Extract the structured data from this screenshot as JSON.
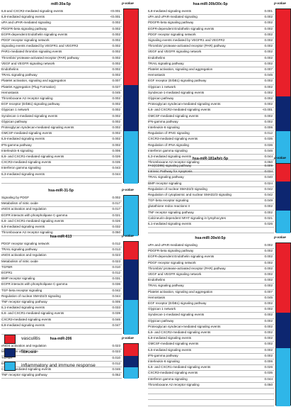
{
  "colors": {
    "vasculitis": "#e8202a",
    "fibrosis": "#0d2670",
    "inflammatory": "#2fb6e8",
    "row_line": "#b7b7b7"
  },
  "legend": [
    {
      "key": "vasculitis",
      "label": "vasculitis"
    },
    {
      "key": "fibrosis",
      "label": "fibrosis"
    },
    {
      "key": "inflammatory",
      "label": "inflammatory and immune response"
    }
  ],
  "panels": [
    {
      "title": "miR-30a-5p",
      "pvalue_header": "p-value",
      "bars": [
        {
          "start": 0,
          "end": 13,
          "key": "vasculitis"
        },
        {
          "start": 13,
          "end": 21,
          "key": "fibrosis"
        },
        {
          "start": 21,
          "end": 30,
          "key": "inflammatory"
        }
      ],
      "rows": [
        {
          "label": "IL6-and CXCR2-mediated signaling events",
          "value": "<0.001"
        },
        {
          "label": "IL8-mediated signaling events",
          "value": "<0.001"
        },
        {
          "label": "uPA and uPAR-mediated signaling",
          "value": "0.002"
        },
        {
          "label": "PDGFR-beta signaling pathway",
          "value": "0.002"
        },
        {
          "label": "EGFR-dependent Endothelin signaling events",
          "value": "0.002"
        },
        {
          "label": "PDGF receptor signaling network",
          "value": "0.002"
        },
        {
          "label": "Signaling events mediated by VEGFR1 and VEGFR2",
          "value": "0.002"
        },
        {
          "label": "PAR1-mediated thrombin signaling events",
          "value": "0.002"
        },
        {
          "label": "Thrombin/ protease-activated receptor (PAR) pathway",
          "value": "0.002"
        },
        {
          "label": "VEGF and VEGFR signaling network",
          "value": "0.002"
        },
        {
          "label": "Endothelins",
          "value": "0.002"
        },
        {
          "label": "TRAIL signaling pathway",
          "value": "0.002"
        },
        {
          "label": "Platelet activation, signaling and aggregation",
          "value": "0.007"
        },
        {
          "label": "Platelet Aggregation (Plug Formation)",
          "value": "0.027"
        },
        {
          "label": "Hemostasis",
          "value": "0.045"
        },
        {
          "label": "Thromboxane A2 receptor signaling",
          "value": "0.002"
        },
        {
          "label": "EGF receptor (ErbB1) signaling pathway",
          "value": "0.002"
        },
        {
          "label": "Glypican 1 network",
          "value": "0.002"
        },
        {
          "label": "Syndecan-1-mediated signaling events",
          "value": "0.002"
        },
        {
          "label": "Glypican pathway",
          "value": "0.002"
        },
        {
          "label": "Proteoglycan syndecan-mediated signaling events",
          "value": "0.002"
        },
        {
          "label": "GMCSF-mediated signaling events",
          "value": "0.002"
        },
        {
          "label": "IL5-mediated signaling events",
          "value": "0.002"
        },
        {
          "label": "IFN-gamma pathway",
          "value": "0.002"
        },
        {
          "label": "Interleukin-6 signaling",
          "value": "0.006"
        },
        {
          "label": "IL6- and CXCR1-mediated signaling events",
          "value": "0.026"
        },
        {
          "label": "CXCR3-mediated signaling events",
          "value": "0.035"
        },
        {
          "label": "Interferon gamma signaling",
          "value": "0.043"
        },
        {
          "label": "IL3-mediated signaling events",
          "value": "0.044"
        },
        {
          "label": "",
          "value": ""
        }
      ]
    },
    {
      "title": "hsa-miR-31-5p",
      "pvalue_header": "p-value",
      "bars": [
        {
          "start": 0,
          "end": 7,
          "key": "inflammatory"
        }
      ],
      "rows": [
        {
          "label": "Signaling by PDGF",
          "value": "0.002"
        },
        {
          "label": "Metabolism of nitric oxide",
          "value": "0.017"
        },
        {
          "label": "eNOS activation and regulation",
          "value": "0.017"
        },
        {
          "label": "EGFR interacts with phospholipase C-gamma",
          "value": "0.021"
        },
        {
          "label": "IL6- and CXCR1-mediated signaling events",
          "value": "0.026"
        },
        {
          "label": "IL8-mediated signaling events",
          "value": "0.032"
        },
        {
          "label": "Thromboxane A2 receptor signaling",
          "value": "0.050"
        }
      ]
    },
    {
      "title": "hsa-miR-613",
      "pvalue_header": "p-value",
      "bars": [
        {
          "start": 0,
          "end": 3,
          "key": "vasculitis"
        },
        {
          "start": 3,
          "end": 10,
          "key": "fibrosis"
        },
        {
          "start": 10,
          "end": 16,
          "key": "inflammatory"
        }
      ],
      "rows": [
        {
          "label": "PDGF receptor signaling network",
          "value": "0.012"
        },
        {
          "label": "TRAIL signaling pathway",
          "value": "0.013"
        },
        {
          "label": "eNOS activation and regulation",
          "value": "0.023"
        },
        {
          "label": "Metabolism of nitric oxide",
          "value": "0.023"
        },
        {
          "label": "TGFBR",
          "value": "0.010"
        },
        {
          "label": "EGFR1",
          "value": "0.012"
        },
        {
          "label": "BMP receptor signaling",
          "value": "0.031"
        },
        {
          "label": "EGFR interacts with phospholipase C-gamma",
          "value": "0.036"
        },
        {
          "label": "TGF-beta receptor signaling",
          "value": "0.042"
        },
        {
          "label": "Regulation of nuclear SMAD2/3 signaling",
          "value": "0.044"
        },
        {
          "label": "TNF receptor signaling pathway",
          "value": "0.005"
        },
        {
          "label": "IL1-mediated signaling events",
          "value": "0.033"
        },
        {
          "label": "IL6- and CXCR1-mediated signaling events",
          "value": "0.039"
        },
        {
          "label": "CXCR3-mediated signaling events",
          "value": "0.046"
        },
        {
          "label": "IL8-mediated signaling events",
          "value": "0.047"
        },
        {
          "label": "",
          "value": ""
        }
      ]
    },
    {
      "title": "hsa-miR-206",
      "pvalue_header": "p-value",
      "bars": [
        {
          "start": 0,
          "end": 2,
          "key": "vasculitis"
        },
        {
          "start": 2,
          "end": 4,
          "key": "fibrosis"
        },
        {
          "start": 4,
          "end": 6,
          "key": "inflammatory"
        }
      ],
      "rows": [
        {
          "label": "eNOS activation and regulation",
          "value": "0.023"
        },
        {
          "label": "Metabolism of nitric oxide",
          "value": "0.023"
        },
        {
          "label": "TGFBR",
          "value": "0.010"
        },
        {
          "label": "EGFR1",
          "value": "0.012"
        },
        {
          "label": "CXCR3-mediated signaling events",
          "value": "0.046"
        },
        {
          "label": "TNF receptor signaling pathway",
          "value": "0.052"
        }
      ]
    },
    {
      "title": "hsa-miR-30b/30c-5p",
      "pvalue_header": "p-value",
      "bars": [
        {
          "start": 0,
          "end": 15,
          "key": "vasculitis"
        },
        {
          "start": 15,
          "end": 21,
          "key": "fibrosis"
        },
        {
          "start": 21,
          "end": 32,
          "key": "inflammatory"
        }
      ],
      "rows": [
        {
          "label": "IL8-mediated signaling events",
          "value": "0.001"
        },
        {
          "label": "uPA and uPAR-mediated signaling",
          "value": "0.002"
        },
        {
          "label": "PDGFR-beta signaling pathway",
          "value": "0.002"
        },
        {
          "label": "EGFR-dependent Endothelin signaling events",
          "value": "0.002"
        },
        {
          "label": "PDGF receptor signaling network",
          "value": "0.002"
        },
        {
          "label": "Signaling events mediated by VEGFR1 and VEGFR2",
          "value": "0.002"
        },
        {
          "label": "Thrombin/ protease-activated receptor (PAR) pathway",
          "value": "0.002"
        },
        {
          "label": "VEGF and VEGFR signaling network",
          "value": "0.002"
        },
        {
          "label": "Endothelins",
          "value": "0.002"
        },
        {
          "label": "TRAIL signaling pathway",
          "value": "0.002"
        },
        {
          "label": "Platelet activation, signaling and aggregation",
          "value": "0.007"
        },
        {
          "label": "Hemostasis",
          "value": "0.045"
        },
        {
          "label": "EGF receptor (ErbB1) signaling pathway",
          "value": "0.002"
        },
        {
          "label": "Glypican 1 network",
          "value": "0.002"
        },
        {
          "label": "Syndecan-1-mediated signaling events",
          "value": "0.002"
        },
        {
          "label": "Glypican pathway",
          "value": "0.002"
        },
        {
          "label": "Proteoglycan syndecan-mediated signaling events",
          "value": "0.002"
        },
        {
          "label": "IL6- and CXCR2-mediated signaling events",
          "value": "<0.001"
        },
        {
          "label": "GMCSF-mediated signaling events",
          "value": "0.002"
        },
        {
          "label": "IFN-gamma pathway",
          "value": "0.002"
        },
        {
          "label": "Interleukin-6 signaling",
          "value": "0.006"
        },
        {
          "label": "Regulation of IFNG signaling",
          "value": "0.012"
        },
        {
          "label": "CXCR3-mediated signaling events",
          "value": "0.035"
        },
        {
          "label": "Regulation of IFNA signaling",
          "value": "0.036"
        },
        {
          "label": "Interferon gamma signaling",
          "value": "0.046"
        },
        {
          "label": "IL3-mediated signaling events",
          "value": "0.044"
        },
        {
          "label": "Thromboxane A2 receptor signaling",
          "value": "0.050"
        },
        {
          "label": "",
          "value": ""
        }
      ]
    },
    {
      "title": "hsa-miR-181a/b/c-5p",
      "pvalue_header": "p-value",
      "bars": [
        {
          "start": 0,
          "end": 3,
          "key": "vasculitis"
        },
        {
          "start": 3,
          "end": 8,
          "key": "fibrosis"
        },
        {
          "start": 8,
          "end": 12,
          "key": "inflammatory"
        }
      ],
      "rows": [
        {
          "label": "FAS(CD95) signaling pathway",
          "value": "0.009"
        },
        {
          "label": "Intrinsic Pathway for Apoptosis",
          "value": "0.034"
        },
        {
          "label": "TRAIL signaling pathway",
          "value": "0.040"
        },
        {
          "label": "BMP receptor signaling",
          "value": "0.024"
        },
        {
          "label": "Regulation of nuclear SMAD2/3 signaling",
          "value": "0.042"
        },
        {
          "label": "Regulation of cytoplasmic and nuclear SMAD2/3 signaling",
          "value": "0.042"
        },
        {
          "label": "TGF-beta receptor signaling",
          "value": "0.049"
        },
        {
          "label": "glutathione redox reactions II",
          "value": "0.002"
        },
        {
          "label": "TNF receptor signaling pathway",
          "value": "0.002"
        },
        {
          "label": "Calcineurin-dependent NFAT signaling in lymphocytes",
          "value": "0.021"
        },
        {
          "label": "IL1-mediated signaling events",
          "value": "0.026"
        },
        {
          "label": "",
          "value": ""
        }
      ]
    },
    {
      "title": "hsa-miR-30e/d-5p",
      "pvalue_header": "p-value",
      "bars": [
        {
          "start": 0,
          "end": 12,
          "key": "vasculitis"
        },
        {
          "start": 12,
          "end": 18,
          "key": "fibrosis"
        },
        {
          "start": 18,
          "end": 28,
          "key": "inflammatory"
        }
      ],
      "rows": [
        {
          "label": "uPA and uPAR-mediated signaling",
          "value": "0.002"
        },
        {
          "label": "PDGFR-beta signaling pathway",
          "value": "0.002"
        },
        {
          "label": "EGFR-dependent Endothelin signaling events",
          "value": "0.002"
        },
        {
          "label": "PDGF receptor signaling network",
          "value": "0.002"
        },
        {
          "label": "Thrombin/ protease-activated receptor (PAR) pathway",
          "value": "0.002"
        },
        {
          "label": "VEGF and VEGFR signaling network",
          "value": "0.002"
        },
        {
          "label": "Endothelins",
          "value": "0.002"
        },
        {
          "label": "TRAIL signaling pathway",
          "value": "0.002"
        },
        {
          "label": "Platelet activation, signaling and aggregation",
          "value": "0.007"
        },
        {
          "label": "Hemostasis",
          "value": "0.045"
        },
        {
          "label": "EGF receptor (ErbB1) signaling pathway",
          "value": "0.002"
        },
        {
          "label": "Glypican 1 network",
          "value": "0.002"
        },
        {
          "label": "Syndecan-1-mediated signaling events",
          "value": "0.002"
        },
        {
          "label": "Glypican pathway",
          "value": "0.002"
        },
        {
          "label": "Proteoglycan syndecan-mediated signaling events",
          "value": "0.002"
        },
        {
          "label": "IL6- and CXCR2-mediated signaling events",
          "value": "0.002"
        },
        {
          "label": "IL8-mediated signaling events",
          "value": "0.002"
        },
        {
          "label": "GMCSF-mediated signaling events",
          "value": "0.002"
        },
        {
          "label": "IL5-mediated signaling events",
          "value": "0.002"
        },
        {
          "label": "IFN-gamma pathway",
          "value": "0.002"
        },
        {
          "label": "Interleukin-6 signaling",
          "value": "0.006"
        },
        {
          "label": "IL6- and CXCR1-mediated signaling events",
          "value": "0.026"
        },
        {
          "label": "CXCR3-mediated signaling events",
          "value": "0.035"
        },
        {
          "label": "Interferon gamma signaling",
          "value": "0.044"
        },
        {
          "label": "Thromboxane A2 receptor signaling",
          "value": "0.050"
        },
        {
          "label": "",
          "value": ""
        },
        {
          "label": "",
          "value": ""
        },
        {
          "label": "",
          "value": ""
        }
      ]
    }
  ]
}
